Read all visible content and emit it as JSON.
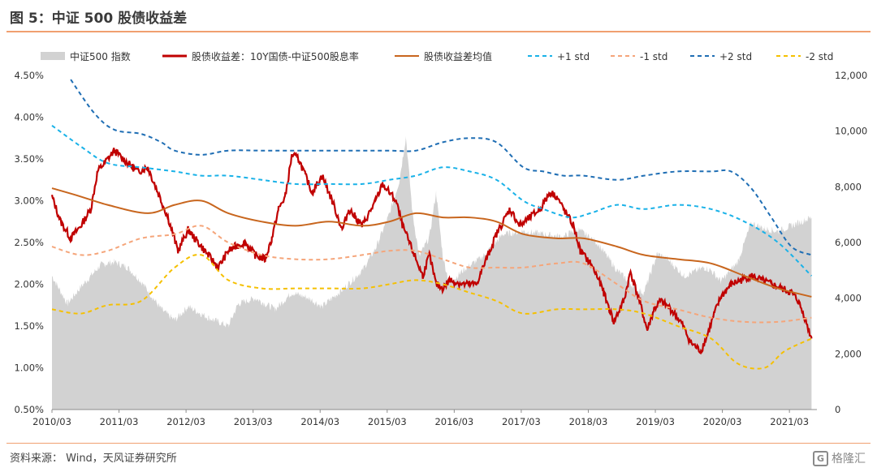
{
  "header": {
    "title": "图 5：中证 500 股债收益差"
  },
  "footer": {
    "source": "资料来源：  Wind，天风证券研究所",
    "watermark_text": "格隆汇",
    "watermark_glyph": "G"
  },
  "chart_data": {
    "type": "line",
    "title": "图 5：中证 500 股债收益差",
    "x_ticks": [
      "2010/03",
      "2011/03",
      "2012/03",
      "2013/03",
      "2014/03",
      "2015/03",
      "2016/03",
      "2017/03",
      "2018/03",
      "2019/03",
      "2020/03",
      "2021/03"
    ],
    "y_left": {
      "min": 0.5,
      "max": 4.5,
      "ticks": [
        "0.50%",
        "1.00%",
        "1.50%",
        "2.00%",
        "2.50%",
        "3.00%",
        "3.50%",
        "4.00%",
        "4.50%"
      ]
    },
    "y_right": {
      "min": 0,
      "max": 12000,
      "ticks": [
        "0",
        "2,000",
        "4,000",
        "6,000",
        "8,000",
        "10,000",
        "12,000"
      ]
    },
    "legend_position": "top",
    "grid": false,
    "series": [
      {
        "name": "中证500 指数",
        "kind": "area",
        "axis": "right",
        "color": "#d2d2d2",
        "t": [
          2010.17,
          2010.4,
          2010.6,
          2010.9,
          2011.1,
          2011.3,
          2011.5,
          2011.8,
          2012.0,
          2012.2,
          2012.5,
          2012.8,
          2012.95,
          2013.2,
          2013.5,
          2013.75,
          2014.0,
          2014.2,
          2014.5,
          2014.8,
          2015.0,
          2015.2,
          2015.35,
          2015.45,
          2015.55,
          2015.65,
          2015.8,
          2015.9,
          2016.0,
          2016.1,
          2016.3,
          2016.6,
          2016.9,
          2017.2,
          2017.5,
          2017.8,
          2018.0,
          2018.3,
          2018.6,
          2018.9,
          2019.0,
          2019.2,
          2019.35,
          2019.6,
          2019.9,
          2020.0,
          2020.15,
          2020.4,
          2020.6,
          2020.8,
          2021.0,
          2021.2,
          2021.4,
          2021.5
        ],
        "values": [
          4800,
          3800,
          4400,
          5200,
          5300,
          5100,
          4600,
          3600,
          3200,
          3700,
          3300,
          3000,
          3800,
          4000,
          3600,
          4200,
          4000,
          3700,
          4300,
          5000,
          5800,
          7000,
          8200,
          9800,
          7000,
          5500,
          6200,
          7800,
          5500,
          4500,
          5000,
          5500,
          6300,
          6400,
          6300,
          6200,
          6500,
          6000,
          5000,
          4300,
          4200,
          5600,
          5400,
          4800,
          5100,
          5000,
          4600,
          5300,
          6700,
          6500,
          6400,
          6600,
          6800,
          6900
        ]
      },
      {
        "name": "股债收益差：10Y国债-中证500股息率",
        "kind": "line",
        "axis": "left",
        "color": "#c00000",
        "t": [
          2010.17,
          2010.3,
          2010.45,
          2010.6,
          2010.75,
          2010.85,
          2010.95,
          2011.1,
          2011.3,
          2011.45,
          2011.6,
          2011.7,
          2011.9,
          2012.05,
          2012.2,
          2012.35,
          2012.5,
          2012.65,
          2012.8,
          2012.9,
          2013.05,
          2013.2,
          2013.35,
          2013.45,
          2013.55,
          2013.65,
          2013.75,
          2013.85,
          2013.95,
          2014.05,
          2014.2,
          2014.35,
          2014.5,
          2014.6,
          2014.7,
          2014.8,
          2014.9,
          2015.0,
          2015.1,
          2015.2,
          2015.3,
          2015.4,
          2015.5,
          2015.6,
          2015.7,
          2015.8,
          2015.9,
          2016.0,
          2016.1,
          2016.3,
          2016.5,
          2016.7,
          2016.8,
          2016.9,
          2017.0,
          2017.15,
          2017.3,
          2017.45,
          2017.6,
          2017.7,
          2017.8,
          2017.95,
          2018.05,
          2018.2,
          2018.3,
          2018.4,
          2018.55,
          2018.7,
          2018.8,
          2018.95,
          2019.05,
          2019.15,
          2019.25,
          2019.4,
          2019.55,
          2019.7,
          2019.85,
          2019.95,
          2020.05,
          2020.15,
          2020.3,
          2020.45,
          2020.6,
          2020.75,
          2020.9,
          2021.05,
          2021.2,
          2021.3,
          2021.4,
          2021.5
        ],
        "values": [
          3.05,
          2.75,
          2.55,
          2.7,
          2.9,
          3.35,
          3.45,
          3.6,
          3.45,
          3.35,
          3.4,
          3.2,
          2.8,
          2.4,
          2.65,
          2.5,
          2.35,
          2.2,
          2.4,
          2.45,
          2.5,
          2.35,
          2.3,
          2.55,
          2.9,
          3.05,
          3.55,
          3.5,
          3.3,
          3.1,
          3.3,
          3.0,
          2.65,
          2.9,
          2.8,
          2.7,
          2.85,
          3.0,
          3.2,
          3.1,
          3.0,
          2.7,
          2.5,
          2.3,
          2.1,
          2.35,
          2.0,
          1.95,
          2.05,
          2.0,
          2.0,
          2.4,
          2.6,
          2.75,
          2.9,
          2.7,
          2.8,
          2.9,
          3.1,
          3.05,
          2.9,
          2.7,
          2.4,
          2.25,
          2.1,
          1.9,
          1.55,
          1.8,
          2.15,
          1.75,
          1.45,
          1.7,
          1.8,
          1.7,
          1.55,
          1.3,
          1.2,
          1.4,
          1.65,
          1.85,
          2.0,
          2.05,
          2.1,
          2.05,
          2.0,
          1.95,
          1.9,
          1.8,
          1.6,
          1.35
        ]
      },
      {
        "name": "股债收益差均值",
        "kind": "line",
        "axis": "left",
        "color": "#c8661e",
        "t": [
          2010.17,
          2010.6,
          2011.0,
          2011.6,
          2012.0,
          2012.4,
          2012.8,
          2013.3,
          2013.8,
          2014.3,
          2014.8,
          2015.2,
          2015.6,
          2016.0,
          2016.4,
          2016.8,
          2017.2,
          2017.7,
          2018.1,
          2018.6,
          2019.0,
          2019.5,
          2020.0,
          2020.5,
          2021.0,
          2021.5
        ],
        "values": [
          3.15,
          3.05,
          2.95,
          2.85,
          2.95,
          3.0,
          2.85,
          2.75,
          2.7,
          2.75,
          2.7,
          2.75,
          2.85,
          2.8,
          2.8,
          2.75,
          2.6,
          2.55,
          2.55,
          2.45,
          2.35,
          2.3,
          2.25,
          2.1,
          1.95,
          1.85
        ]
      },
      {
        "name": "+1 std",
        "kind": "dashed",
        "axis": "left",
        "color": "#1ab2e8",
        "t": [
          2010.17,
          2010.6,
          2011.0,
          2011.5,
          2012.0,
          2012.4,
          2012.8,
          2013.3,
          2013.8,
          2014.3,
          2014.8,
          2015.2,
          2015.6,
          2016.0,
          2016.4,
          2016.8,
          2017.2,
          2017.5,
          2017.9,
          2018.2,
          2018.6,
          2019.0,
          2019.5,
          2020.0,
          2020.5,
          2021.0,
          2021.5
        ],
        "values": [
          3.9,
          3.65,
          3.45,
          3.4,
          3.35,
          3.3,
          3.3,
          3.25,
          3.2,
          3.2,
          3.2,
          3.25,
          3.3,
          3.4,
          3.35,
          3.25,
          3.0,
          2.9,
          2.8,
          2.85,
          2.95,
          2.9,
          2.95,
          2.9,
          2.75,
          2.5,
          2.1
        ]
      },
      {
        "name": "-1 std",
        "kind": "dashed",
        "axis": "left",
        "color": "#f5a57a",
        "t": [
          2010.17,
          2010.6,
          2011.0,
          2011.5,
          2012.0,
          2012.4,
          2012.8,
          2013.3,
          2013.8,
          2014.3,
          2014.8,
          2015.2,
          2015.6,
          2016.0,
          2016.4,
          2016.8,
          2017.2,
          2017.7,
          2018.1,
          2018.6,
          2019.0,
          2019.5,
          2020.0,
          2020.5,
          2021.0,
          2021.5
        ],
        "values": [
          2.45,
          2.35,
          2.4,
          2.55,
          2.6,
          2.7,
          2.5,
          2.35,
          2.3,
          2.3,
          2.35,
          2.4,
          2.4,
          2.3,
          2.2,
          2.2,
          2.2,
          2.25,
          2.25,
          2.0,
          1.8,
          1.7,
          1.6,
          1.55,
          1.55,
          1.6
        ]
      },
      {
        "name": "+2 std",
        "kind": "dashed",
        "axis": "left",
        "color": "#1f6eb4",
        "t": [
          2010.45,
          2010.8,
          2011.1,
          2011.5,
          2011.8,
          2012.0,
          2012.4,
          2012.8,
          2013.3,
          2013.8,
          2014.3,
          2014.8,
          2015.2,
          2015.6,
          2016.0,
          2016.4,
          2016.8,
          2017.2,
          2017.5,
          2017.8,
          2018.1,
          2018.6,
          2019.0,
          2019.5,
          2020.0,
          2020.3,
          2020.6,
          2020.9,
          2021.2,
          2021.5
        ],
        "values": [
          4.45,
          4.05,
          3.85,
          3.8,
          3.7,
          3.6,
          3.55,
          3.6,
          3.6,
          3.6,
          3.6,
          3.6,
          3.6,
          3.6,
          3.7,
          3.75,
          3.7,
          3.4,
          3.35,
          3.3,
          3.3,
          3.25,
          3.3,
          3.35,
          3.35,
          3.35,
          3.15,
          2.8,
          2.45,
          2.35
        ]
      },
      {
        "name": "-2 std",
        "kind": "dashed",
        "axis": "left",
        "color": "#f5c000",
        "t": [
          2010.17,
          2010.6,
          2011.0,
          2011.5,
          2012.0,
          2012.4,
          2012.8,
          2013.3,
          2013.8,
          2014.3,
          2014.8,
          2015.2,
          2015.6,
          2016.0,
          2016.4,
          2016.8,
          2017.2,
          2017.7,
          2018.1,
          2018.6,
          2019.0,
          2019.5,
          2020.0,
          2020.4,
          2020.8,
          2021.1,
          2021.5
        ],
        "values": [
          1.7,
          1.65,
          1.75,
          1.8,
          2.2,
          2.35,
          2.05,
          1.95,
          1.95,
          1.95,
          1.95,
          2.0,
          2.05,
          2.0,
          1.9,
          1.8,
          1.65,
          1.7,
          1.7,
          1.7,
          1.65,
          1.5,
          1.35,
          1.05,
          1.0,
          1.2,
          1.35
        ]
      }
    ]
  }
}
